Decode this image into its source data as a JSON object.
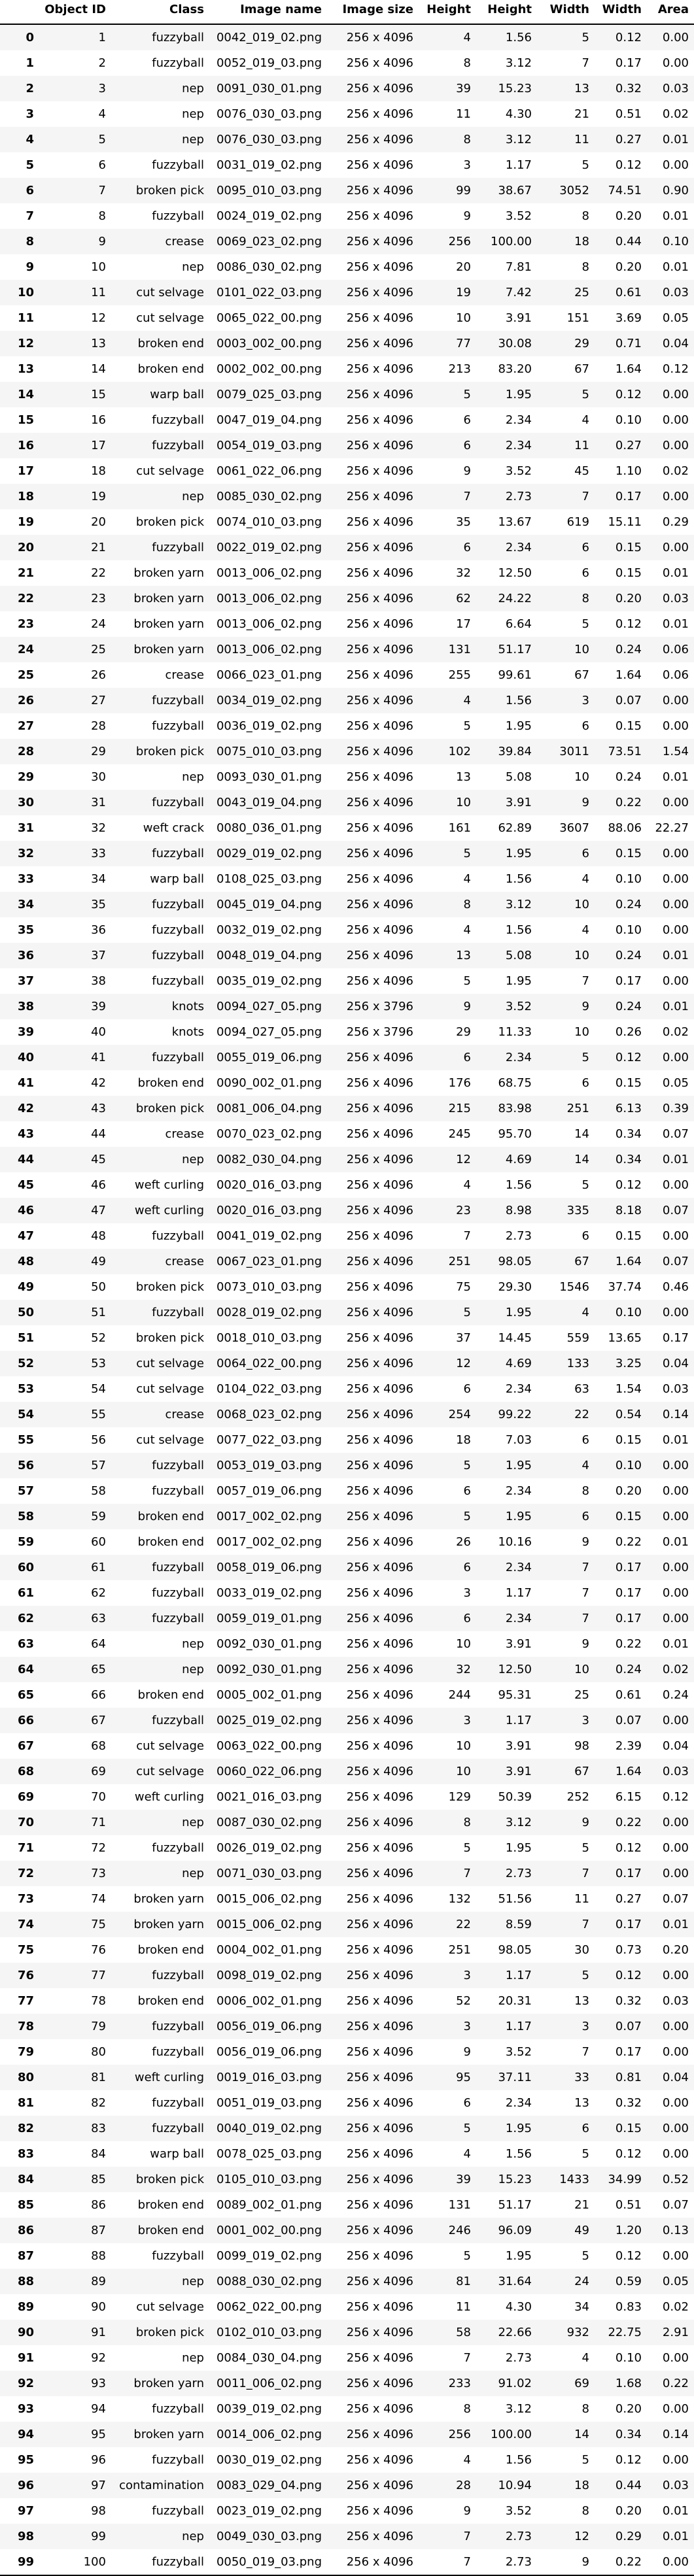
{
  "table": {
    "columns": [
      "",
      "Object ID",
      "Class",
      "Image name",
      "Image size",
      "Height",
      "Height",
      "Width",
      "Width",
      "Area"
    ],
    "rows": [
      [
        "0",
        "1",
        "fuzzyball",
        "0042_019_02.png",
        "256 x 4096",
        "4",
        "1.56",
        "5",
        "0.12",
        "0.00"
      ],
      [
        "1",
        "2",
        "fuzzyball",
        "0052_019_03.png",
        "256 x 4096",
        "8",
        "3.12",
        "7",
        "0.17",
        "0.00"
      ],
      [
        "2",
        "3",
        "nep",
        "0091_030_01.png",
        "256 x 4096",
        "39",
        "15.23",
        "13",
        "0.32",
        "0.03"
      ],
      [
        "3",
        "4",
        "nep",
        "0076_030_03.png",
        "256 x 4096",
        "11",
        "4.30",
        "21",
        "0.51",
        "0.02"
      ],
      [
        "4",
        "5",
        "nep",
        "0076_030_03.png",
        "256 x 4096",
        "8",
        "3.12",
        "11",
        "0.27",
        "0.01"
      ],
      [
        "5",
        "6",
        "fuzzyball",
        "0031_019_02.png",
        "256 x 4096",
        "3",
        "1.17",
        "5",
        "0.12",
        "0.00"
      ],
      [
        "6",
        "7",
        "broken pick",
        "0095_010_03.png",
        "256 x 4096",
        "99",
        "38.67",
        "3052",
        "74.51",
        "0.90"
      ],
      [
        "7",
        "8",
        "fuzzyball",
        "0024_019_02.png",
        "256 x 4096",
        "9",
        "3.52",
        "8",
        "0.20",
        "0.01"
      ],
      [
        "8",
        "9",
        "crease",
        "0069_023_02.png",
        "256 x 4096",
        "256",
        "100.00",
        "18",
        "0.44",
        "0.10"
      ],
      [
        "9",
        "10",
        "nep",
        "0086_030_02.png",
        "256 x 4096",
        "20",
        "7.81",
        "8",
        "0.20",
        "0.01"
      ],
      [
        "10",
        "11",
        "cut selvage",
        "0101_022_03.png",
        "256 x 4096",
        "19",
        "7.42",
        "25",
        "0.61",
        "0.03"
      ],
      [
        "11",
        "12",
        "cut selvage",
        "0065_022_00.png",
        "256 x 4096",
        "10",
        "3.91",
        "151",
        "3.69",
        "0.05"
      ],
      [
        "12",
        "13",
        "broken end",
        "0003_002_00.png",
        "256 x 4096",
        "77",
        "30.08",
        "29",
        "0.71",
        "0.04"
      ],
      [
        "13",
        "14",
        "broken end",
        "0002_002_00.png",
        "256 x 4096",
        "213",
        "83.20",
        "67",
        "1.64",
        "0.12"
      ],
      [
        "14",
        "15",
        "warp ball",
        "0079_025_03.png",
        "256 x 4096",
        "5",
        "1.95",
        "5",
        "0.12",
        "0.00"
      ],
      [
        "15",
        "16",
        "fuzzyball",
        "0047_019_04.png",
        "256 x 4096",
        "6",
        "2.34",
        "4",
        "0.10",
        "0.00"
      ],
      [
        "16",
        "17",
        "fuzzyball",
        "0054_019_03.png",
        "256 x 4096",
        "6",
        "2.34",
        "11",
        "0.27",
        "0.00"
      ],
      [
        "17",
        "18",
        "cut selvage",
        "0061_022_06.png",
        "256 x 4096",
        "9",
        "3.52",
        "45",
        "1.10",
        "0.02"
      ],
      [
        "18",
        "19",
        "nep",
        "0085_030_02.png",
        "256 x 4096",
        "7",
        "2.73",
        "7",
        "0.17",
        "0.00"
      ],
      [
        "19",
        "20",
        "broken pick",
        "0074_010_03.png",
        "256 x 4096",
        "35",
        "13.67",
        "619",
        "15.11",
        "0.29"
      ],
      [
        "20",
        "21",
        "fuzzyball",
        "0022_019_02.png",
        "256 x 4096",
        "6",
        "2.34",
        "6",
        "0.15",
        "0.00"
      ],
      [
        "21",
        "22",
        "broken yarn",
        "0013_006_02.png",
        "256 x 4096",
        "32",
        "12.50",
        "6",
        "0.15",
        "0.01"
      ],
      [
        "22",
        "23",
        "broken yarn",
        "0013_006_02.png",
        "256 x 4096",
        "62",
        "24.22",
        "8",
        "0.20",
        "0.03"
      ],
      [
        "23",
        "24",
        "broken yarn",
        "0013_006_02.png",
        "256 x 4096",
        "17",
        "6.64",
        "5",
        "0.12",
        "0.01"
      ],
      [
        "24",
        "25",
        "broken yarn",
        "0013_006_02.png",
        "256 x 4096",
        "131",
        "51.17",
        "10",
        "0.24",
        "0.06"
      ],
      [
        "25",
        "26",
        "crease",
        "0066_023_01.png",
        "256 x 4096",
        "255",
        "99.61",
        "67",
        "1.64",
        "0.06"
      ],
      [
        "26",
        "27",
        "fuzzyball",
        "0034_019_02.png",
        "256 x 4096",
        "4",
        "1.56",
        "3",
        "0.07",
        "0.00"
      ],
      [
        "27",
        "28",
        "fuzzyball",
        "0036_019_02.png",
        "256 x 4096",
        "5",
        "1.95",
        "6",
        "0.15",
        "0.00"
      ],
      [
        "28",
        "29",
        "broken pick",
        "0075_010_03.png",
        "256 x 4096",
        "102",
        "39.84",
        "3011",
        "73.51",
        "1.54"
      ],
      [
        "29",
        "30",
        "nep",
        "0093_030_01.png",
        "256 x 4096",
        "13",
        "5.08",
        "10",
        "0.24",
        "0.01"
      ],
      [
        "30",
        "31",
        "fuzzyball",
        "0043_019_04.png",
        "256 x 4096",
        "10",
        "3.91",
        "9",
        "0.22",
        "0.00"
      ],
      [
        "31",
        "32",
        "weft crack",
        "0080_036_01.png",
        "256 x 4096",
        "161",
        "62.89",
        "3607",
        "88.06",
        "22.27"
      ],
      [
        "32",
        "33",
        "fuzzyball",
        "0029_019_02.png",
        "256 x 4096",
        "5",
        "1.95",
        "6",
        "0.15",
        "0.00"
      ],
      [
        "33",
        "34",
        "warp ball",
        "0108_025_03.png",
        "256 x 4096",
        "4",
        "1.56",
        "4",
        "0.10",
        "0.00"
      ],
      [
        "34",
        "35",
        "fuzzyball",
        "0045_019_04.png",
        "256 x 4096",
        "8",
        "3.12",
        "10",
        "0.24",
        "0.00"
      ],
      [
        "35",
        "36",
        "fuzzyball",
        "0032_019_02.png",
        "256 x 4096",
        "4",
        "1.56",
        "4",
        "0.10",
        "0.00"
      ],
      [
        "36",
        "37",
        "fuzzyball",
        "0048_019_04.png",
        "256 x 4096",
        "13",
        "5.08",
        "10",
        "0.24",
        "0.01"
      ],
      [
        "37",
        "38",
        "fuzzyball",
        "0035_019_02.png",
        "256 x 4096",
        "5",
        "1.95",
        "7",
        "0.17",
        "0.00"
      ],
      [
        "38",
        "39",
        "knots",
        "0094_027_05.png",
        "256 x 3796",
        "9",
        "3.52",
        "9",
        "0.24",
        "0.01"
      ],
      [
        "39",
        "40",
        "knots",
        "0094_027_05.png",
        "256 x 3796",
        "29",
        "11.33",
        "10",
        "0.26",
        "0.02"
      ],
      [
        "40",
        "41",
        "fuzzyball",
        "0055_019_06.png",
        "256 x 4096",
        "6",
        "2.34",
        "5",
        "0.12",
        "0.00"
      ],
      [
        "41",
        "42",
        "broken end",
        "0090_002_01.png",
        "256 x 4096",
        "176",
        "68.75",
        "6",
        "0.15",
        "0.05"
      ],
      [
        "42",
        "43",
        "broken pick",
        "0081_006_04.png",
        "256 x 4096",
        "215",
        "83.98",
        "251",
        "6.13",
        "0.39"
      ],
      [
        "43",
        "44",
        "crease",
        "0070_023_02.png",
        "256 x 4096",
        "245",
        "95.70",
        "14",
        "0.34",
        "0.07"
      ],
      [
        "44",
        "45",
        "nep",
        "0082_030_04.png",
        "256 x 4096",
        "12",
        "4.69",
        "14",
        "0.34",
        "0.01"
      ],
      [
        "45",
        "46",
        "weft curling",
        "0020_016_03.png",
        "256 x 4096",
        "4",
        "1.56",
        "5",
        "0.12",
        "0.00"
      ],
      [
        "46",
        "47",
        "weft curling",
        "0020_016_03.png",
        "256 x 4096",
        "23",
        "8.98",
        "335",
        "8.18",
        "0.07"
      ],
      [
        "47",
        "48",
        "fuzzyball",
        "0041_019_02.png",
        "256 x 4096",
        "7",
        "2.73",
        "6",
        "0.15",
        "0.00"
      ],
      [
        "48",
        "49",
        "crease",
        "0067_023_01.png",
        "256 x 4096",
        "251",
        "98.05",
        "67",
        "1.64",
        "0.07"
      ],
      [
        "49",
        "50",
        "broken pick",
        "0073_010_03.png",
        "256 x 4096",
        "75",
        "29.30",
        "1546",
        "37.74",
        "0.46"
      ],
      [
        "50",
        "51",
        "fuzzyball",
        "0028_019_02.png",
        "256 x 4096",
        "5",
        "1.95",
        "4",
        "0.10",
        "0.00"
      ],
      [
        "51",
        "52",
        "broken pick",
        "0018_010_03.png",
        "256 x 4096",
        "37",
        "14.45",
        "559",
        "13.65",
        "0.17"
      ],
      [
        "52",
        "53",
        "cut selvage",
        "0064_022_00.png",
        "256 x 4096",
        "12",
        "4.69",
        "133",
        "3.25",
        "0.04"
      ],
      [
        "53",
        "54",
        "cut selvage",
        "0104_022_03.png",
        "256 x 4096",
        "6",
        "2.34",
        "63",
        "1.54",
        "0.03"
      ],
      [
        "54",
        "55",
        "crease",
        "0068_023_02.png",
        "256 x 4096",
        "254",
        "99.22",
        "22",
        "0.54",
        "0.14"
      ],
      [
        "55",
        "56",
        "cut selvage",
        "0077_022_03.png",
        "256 x 4096",
        "18",
        "7.03",
        "6",
        "0.15",
        "0.01"
      ],
      [
        "56",
        "57",
        "fuzzyball",
        "0053_019_03.png",
        "256 x 4096",
        "5",
        "1.95",
        "4",
        "0.10",
        "0.00"
      ],
      [
        "57",
        "58",
        "fuzzyball",
        "0057_019_06.png",
        "256 x 4096",
        "6",
        "2.34",
        "8",
        "0.20",
        "0.00"
      ],
      [
        "58",
        "59",
        "broken end",
        "0017_002_02.png",
        "256 x 4096",
        "5",
        "1.95",
        "6",
        "0.15",
        "0.00"
      ],
      [
        "59",
        "60",
        "broken end",
        "0017_002_02.png",
        "256 x 4096",
        "26",
        "10.16",
        "9",
        "0.22",
        "0.01"
      ],
      [
        "60",
        "61",
        "fuzzyball",
        "0058_019_06.png",
        "256 x 4096",
        "6",
        "2.34",
        "7",
        "0.17",
        "0.00"
      ],
      [
        "61",
        "62",
        "fuzzyball",
        "0033_019_02.png",
        "256 x 4096",
        "3",
        "1.17",
        "7",
        "0.17",
        "0.00"
      ],
      [
        "62",
        "63",
        "fuzzyball",
        "0059_019_01.png",
        "256 x 4096",
        "6",
        "2.34",
        "7",
        "0.17",
        "0.00"
      ],
      [
        "63",
        "64",
        "nep",
        "0092_030_01.png",
        "256 x 4096",
        "10",
        "3.91",
        "9",
        "0.22",
        "0.01"
      ],
      [
        "64",
        "65",
        "nep",
        "0092_030_01.png",
        "256 x 4096",
        "32",
        "12.50",
        "10",
        "0.24",
        "0.02"
      ],
      [
        "65",
        "66",
        "broken end",
        "0005_002_01.png",
        "256 x 4096",
        "244",
        "95.31",
        "25",
        "0.61",
        "0.24"
      ],
      [
        "66",
        "67",
        "fuzzyball",
        "0025_019_02.png",
        "256 x 4096",
        "3",
        "1.17",
        "3",
        "0.07",
        "0.00"
      ],
      [
        "67",
        "68",
        "cut selvage",
        "0063_022_00.png",
        "256 x 4096",
        "10",
        "3.91",
        "98",
        "2.39",
        "0.04"
      ],
      [
        "68",
        "69",
        "cut selvage",
        "0060_022_06.png",
        "256 x 4096",
        "10",
        "3.91",
        "67",
        "1.64",
        "0.03"
      ],
      [
        "69",
        "70",
        "weft curling",
        "0021_016_03.png",
        "256 x 4096",
        "129",
        "50.39",
        "252",
        "6.15",
        "0.12"
      ],
      [
        "70",
        "71",
        "nep",
        "0087_030_02.png",
        "256 x 4096",
        "8",
        "3.12",
        "9",
        "0.22",
        "0.00"
      ],
      [
        "71",
        "72",
        "fuzzyball",
        "0026_019_02.png",
        "256 x 4096",
        "5",
        "1.95",
        "5",
        "0.12",
        "0.00"
      ],
      [
        "72",
        "73",
        "nep",
        "0071_030_03.png",
        "256 x 4096",
        "7",
        "2.73",
        "7",
        "0.17",
        "0.00"
      ],
      [
        "73",
        "74",
        "broken yarn",
        "0015_006_02.png",
        "256 x 4096",
        "132",
        "51.56",
        "11",
        "0.27",
        "0.07"
      ],
      [
        "74",
        "75",
        "broken yarn",
        "0015_006_02.png",
        "256 x 4096",
        "22",
        "8.59",
        "7",
        "0.17",
        "0.01"
      ],
      [
        "75",
        "76",
        "broken end",
        "0004_002_01.png",
        "256 x 4096",
        "251",
        "98.05",
        "30",
        "0.73",
        "0.20"
      ],
      [
        "76",
        "77",
        "fuzzyball",
        "0098_019_02.png",
        "256 x 4096",
        "3",
        "1.17",
        "5",
        "0.12",
        "0.00"
      ],
      [
        "77",
        "78",
        "broken end",
        "0006_002_01.png",
        "256 x 4096",
        "52",
        "20.31",
        "13",
        "0.32",
        "0.03"
      ],
      [
        "78",
        "79",
        "fuzzyball",
        "0056_019_06.png",
        "256 x 4096",
        "3",
        "1.17",
        "3",
        "0.07",
        "0.00"
      ],
      [
        "79",
        "80",
        "fuzzyball",
        "0056_019_06.png",
        "256 x 4096",
        "9",
        "3.52",
        "7",
        "0.17",
        "0.00"
      ],
      [
        "80",
        "81",
        "weft curling",
        "0019_016_03.png",
        "256 x 4096",
        "95",
        "37.11",
        "33",
        "0.81",
        "0.04"
      ],
      [
        "81",
        "82",
        "fuzzyball",
        "0051_019_03.png",
        "256 x 4096",
        "6",
        "2.34",
        "13",
        "0.32",
        "0.00"
      ],
      [
        "82",
        "83",
        "fuzzyball",
        "0040_019_02.png",
        "256 x 4096",
        "5",
        "1.95",
        "6",
        "0.15",
        "0.00"
      ],
      [
        "83",
        "84",
        "warp ball",
        "0078_025_03.png",
        "256 x 4096",
        "4",
        "1.56",
        "5",
        "0.12",
        "0.00"
      ],
      [
        "84",
        "85",
        "broken pick",
        "0105_010_03.png",
        "256 x 4096",
        "39",
        "15.23",
        "1433",
        "34.99",
        "0.52"
      ],
      [
        "85",
        "86",
        "broken end",
        "0089_002_01.png",
        "256 x 4096",
        "131",
        "51.17",
        "21",
        "0.51",
        "0.07"
      ],
      [
        "86",
        "87",
        "broken end",
        "0001_002_00.png",
        "256 x 4096",
        "246",
        "96.09",
        "49",
        "1.20",
        "0.13"
      ],
      [
        "87",
        "88",
        "fuzzyball",
        "0099_019_02.png",
        "256 x 4096",
        "5",
        "1.95",
        "5",
        "0.12",
        "0.00"
      ],
      [
        "88",
        "89",
        "nep",
        "0088_030_02.png",
        "256 x 4096",
        "81",
        "31.64",
        "24",
        "0.59",
        "0.05"
      ],
      [
        "89",
        "90",
        "cut selvage",
        "0062_022_00.png",
        "256 x 4096",
        "11",
        "4.30",
        "34",
        "0.83",
        "0.02"
      ],
      [
        "90",
        "91",
        "broken pick",
        "0102_010_03.png",
        "256 x 4096",
        "58",
        "22.66",
        "932",
        "22.75",
        "2.91"
      ],
      [
        "91",
        "92",
        "nep",
        "0084_030_04.png",
        "256 x 4096",
        "7",
        "2.73",
        "4",
        "0.10",
        "0.00"
      ],
      [
        "92",
        "93",
        "broken yarn",
        "0011_006_02.png",
        "256 x 4096",
        "233",
        "91.02",
        "69",
        "1.68",
        "0.22"
      ],
      [
        "93",
        "94",
        "fuzzyball",
        "0039_019_02.png",
        "256 x 4096",
        "8",
        "3.12",
        "8",
        "0.20",
        "0.00"
      ],
      [
        "94",
        "95",
        "broken yarn",
        "0014_006_02.png",
        "256 x 4096",
        "256",
        "100.00",
        "14",
        "0.34",
        "0.14"
      ],
      [
        "95",
        "96",
        "fuzzyball",
        "0030_019_02.png",
        "256 x 4096",
        "4",
        "1.56",
        "5",
        "0.12",
        "0.00"
      ],
      [
        "96",
        "97",
        "contamination",
        "0083_029_04.png",
        "256 x 4096",
        "28",
        "10.94",
        "18",
        "0.44",
        "0.03"
      ],
      [
        "97",
        "98",
        "fuzzyball",
        "0023_019_02.png",
        "256 x 4096",
        "9",
        "3.52",
        "8",
        "0.20",
        "0.01"
      ],
      [
        "98",
        "99",
        "nep",
        "0049_030_03.png",
        "256 x 4096",
        "7",
        "2.73",
        "12",
        "0.29",
        "0.01"
      ],
      [
        "99",
        "100",
        "fuzzyball",
        "0050_019_03.png",
        "256 x 4096",
        "7",
        "2.73",
        "9",
        "0.22",
        "0.00"
      ]
    ]
  }
}
